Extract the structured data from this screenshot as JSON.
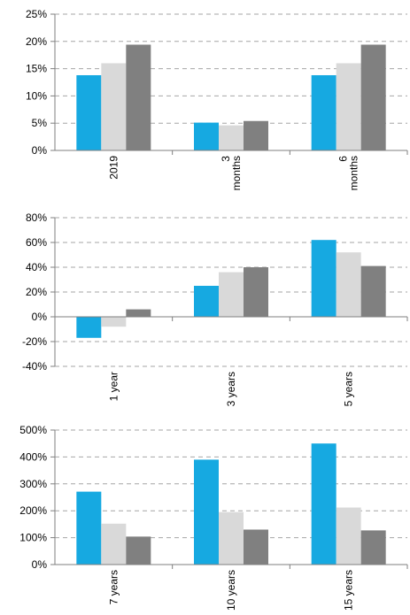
{
  "chart_data": [
    {
      "type": "bar",
      "categories": [
        "2019",
        "3\nmonths",
        "6\nmonths"
      ],
      "series": [
        {
          "color": "#16a9e1",
          "values": [
            13.8,
            5.1,
            13.8
          ]
        },
        {
          "color": "#d9d9d9",
          "values": [
            16.0,
            4.6,
            16.0
          ]
        },
        {
          "color": "#808080",
          "values": [
            19.4,
            5.4,
            19.4
          ]
        }
      ],
      "ylim": [
        0,
        25
      ],
      "yticks": [
        0,
        5,
        10,
        15,
        20,
        25
      ],
      "ytick_labels": [
        "0%",
        "5%",
        "10%",
        "15%",
        "20%",
        "25%"
      ],
      "grid": true,
      "legend": "none"
    },
    {
      "type": "bar",
      "categories": [
        "1 year",
        "3 years",
        "5 years"
      ],
      "series": [
        {
          "color": "#16a9e1",
          "values": [
            -17,
            25,
            62
          ]
        },
        {
          "color": "#d9d9d9",
          "values": [
            -8,
            36,
            52
          ]
        },
        {
          "color": "#808080",
          "values": [
            6,
            40,
            41
          ]
        }
      ],
      "ylim": [
        -40,
        80
      ],
      "yticks": [
        -40,
        -20,
        0,
        20,
        40,
        60,
        80
      ],
      "ytick_labels": [
        "-40%",
        "-20%",
        "0%",
        "20%",
        "40%",
        "60%",
        "80%"
      ],
      "grid": true,
      "legend": "none"
    },
    {
      "type": "bar",
      "categories": [
        "7 years",
        "10 years",
        "15 years"
      ],
      "series": [
        {
          "color": "#16a9e1",
          "values": [
            271,
            390,
            450
          ]
        },
        {
          "color": "#d9d9d9",
          "values": [
            152,
            195,
            212
          ]
        },
        {
          "color": "#808080",
          "values": [
            104,
            130,
            127
          ]
        }
      ],
      "ylim": [
        0,
        500
      ],
      "yticks": [
        0,
        100,
        200,
        300,
        400,
        500
      ],
      "ytick_labels": [
        "0%",
        "100%",
        "200%",
        "300%",
        "400%",
        "500%"
      ],
      "grid": true,
      "legend": "none"
    }
  ]
}
